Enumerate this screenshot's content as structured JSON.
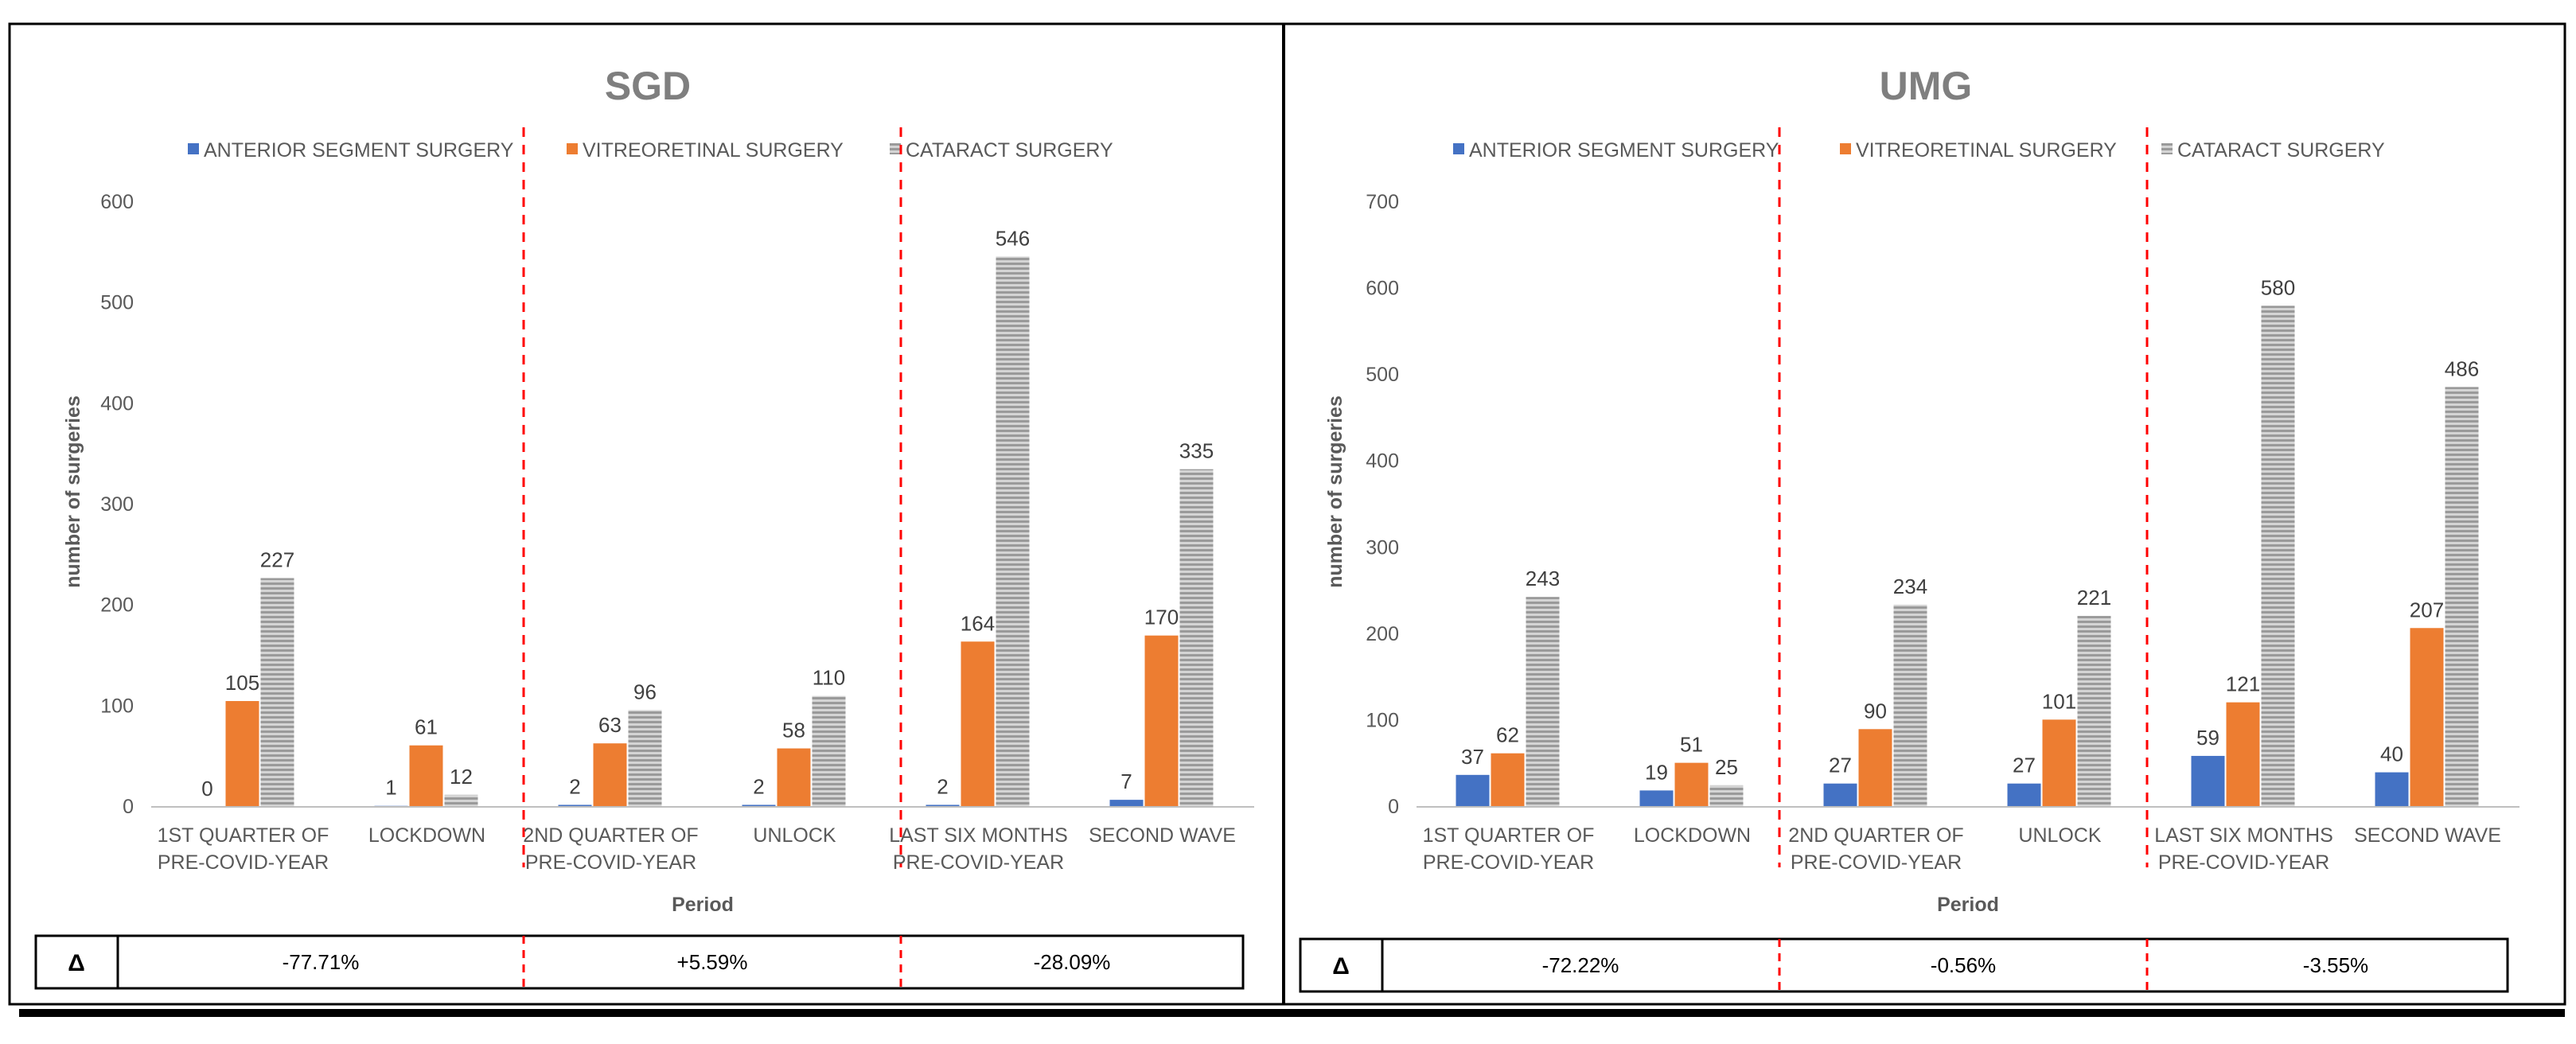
{
  "colors": {
    "anterior": "#4472c4",
    "vitreoretinal": "#ed7d31",
    "cataract": "#a5a5a5",
    "separator": "#ff0000",
    "axis": "#bfbfbf",
    "text": "#595959",
    "border": "#000000"
  },
  "delta_symbol": "Δ",
  "chart_data": [
    {
      "type": "bar",
      "title": "SGD",
      "xlabel": "Period",
      "ylabel": "number of surgeries",
      "ylim": [
        0,
        600
      ],
      "yticks": [
        "0",
        "100",
        "200",
        "300",
        "400",
        "500",
        "600"
      ],
      "legend_position": "top",
      "categories": [
        [
          "1ST QUARTER OF",
          "PRE-COVID-YEAR"
        ],
        [
          "LOCKDOWN"
        ],
        [
          "2ND QUARTER OF",
          "PRE-COVID-YEAR"
        ],
        [
          "UNLOCK"
        ],
        [
          "LAST SIX MONTHS",
          "PRE-COVID-YEAR"
        ],
        [
          "SECOND WAVE"
        ]
      ],
      "series": [
        {
          "name": "ANTERIOR SEGMENT SURGERY",
          "values": [
            0,
            1,
            2,
            2,
            2,
            7
          ]
        },
        {
          "name": "VITREORETINAL SURGERY",
          "values": [
            105,
            61,
            63,
            58,
            164,
            170
          ]
        },
        {
          "name": "CATARACT SURGERY",
          "values": [
            227,
            12,
            96,
            110,
            546,
            335
          ]
        }
      ],
      "deltas": [
        "-77.71%",
        "+5.59%",
        "-28.09%"
      ]
    },
    {
      "type": "bar",
      "title": "UMG",
      "xlabel": "Period",
      "ylabel": "number of surgeries",
      "ylim": [
        0,
        700
      ],
      "yticks": [
        "0",
        "100",
        "200",
        "300",
        "400",
        "500",
        "600",
        "700"
      ],
      "legend_position": "top",
      "categories": [
        [
          "1ST QUARTER OF",
          "PRE-COVID-YEAR"
        ],
        [
          "LOCKDOWN"
        ],
        [
          "2ND QUARTER OF",
          "PRE-COVID-YEAR"
        ],
        [
          "UNLOCK"
        ],
        [
          "LAST SIX MONTHS",
          "PRE-COVID-YEAR"
        ],
        [
          "SECOND WAVE"
        ]
      ],
      "series": [
        {
          "name": "ANTERIOR SEGMENT SURGERY",
          "values": [
            37,
            19,
            27,
            27,
            59,
            40
          ]
        },
        {
          "name": "VITREORETINAL SURGERY",
          "values": [
            62,
            51,
            90,
            101,
            121,
            207
          ]
        },
        {
          "name": "CATARACT SURGERY",
          "values": [
            243,
            25,
            234,
            221,
            580,
            486
          ]
        }
      ],
      "deltas": [
        "-72.22%",
        "-0.56%",
        "-3.55%"
      ]
    }
  ]
}
